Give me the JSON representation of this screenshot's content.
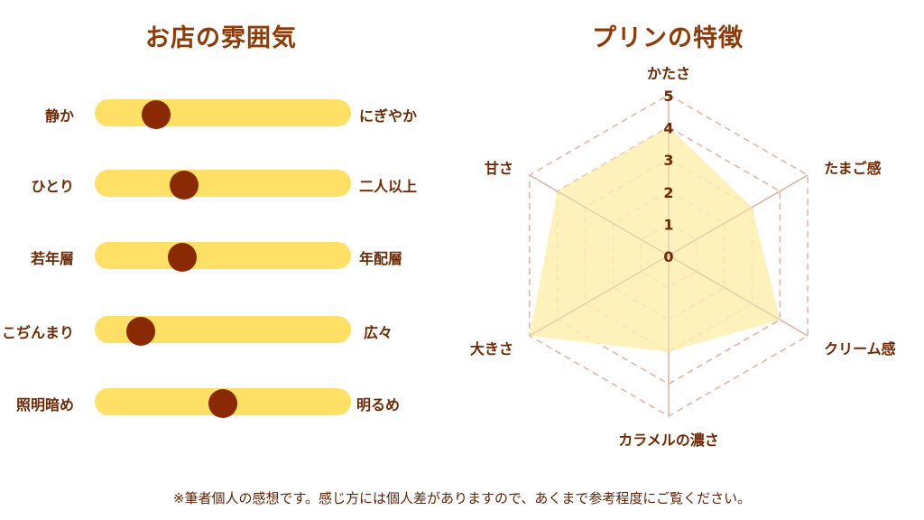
{
  "atmosphere": {
    "title": "お店の雰囲気",
    "sliders": [
      {
        "left": "静か",
        "right": "にぎやか",
        "value": 0.24
      },
      {
        "left": "ひとり",
        "right": "二人以上",
        "value": 0.35
      },
      {
        "left": "若年層",
        "right": "年配層",
        "value": 0.34
      },
      {
        "left": "こぢんまり",
        "right": "広々",
        "value": 0.18
      },
      {
        "left": "照明暗め",
        "right": "明るめ",
        "value": 0.5
      }
    ]
  },
  "characteristics": {
    "title": "プリンの特徴"
  },
  "chart_data": {
    "type": "radar",
    "title": "プリンの特徴",
    "axes": [
      "かたさ",
      "たまご感",
      "クリーム感",
      "カラメルの濃さ",
      "大きさ",
      "甘さ"
    ],
    "values": [
      4,
      3,
      4,
      3,
      5,
      4
    ],
    "range": [
      0,
      5
    ],
    "ticks": [
      "0",
      "1",
      "2",
      "3",
      "4",
      "5"
    ]
  },
  "footnote": "※筆者個人の感想です。感じ方には個人差がありますので、あくまで参考程度にご覧ください。",
  "colors": {
    "track": "#fde065",
    "knob": "#8a2a05",
    "title": "#8a3b08",
    "radar_fill": "#fdeeb0",
    "radar_grid": "#d9b4a6"
  }
}
